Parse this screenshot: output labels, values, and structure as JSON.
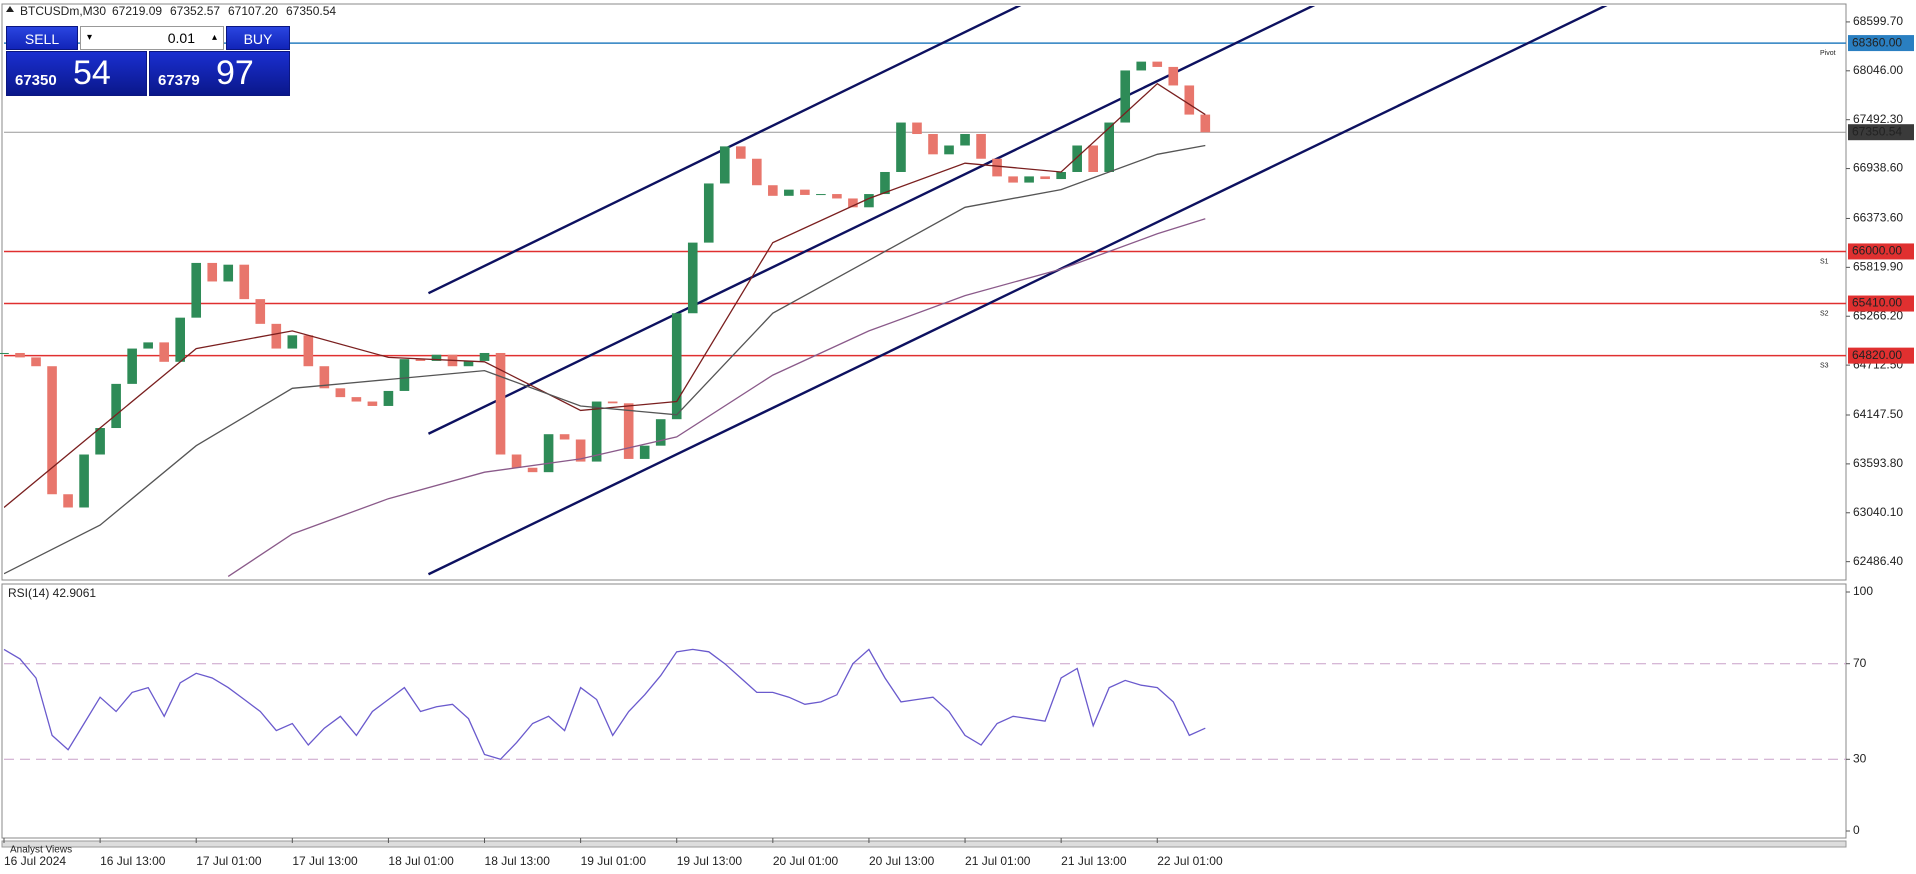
{
  "header": {
    "symbol": "BTCUSDm,M30",
    "ohlc": [
      "67219.09",
      "67352.57",
      "67107.20",
      "67350.54"
    ]
  },
  "trade_panel": {
    "sell": "SELL",
    "lot": "0.01",
    "buy": "BUY",
    "sell_price": [
      "67350",
      "54"
    ],
    "buy_price": [
      "67379",
      "97"
    ]
  },
  "tab": "Analyst Views",
  "chart_data": [
    {
      "type": "candlestick",
      "xlim": [
        0,
        230
      ],
      "xticks": [
        {
          "value": 0,
          "label": "16 Jul 2024"
        },
        {
          "value": 12,
          "label": "16 Jul 13:00"
        },
        {
          "value": 24,
          "label": "17 Jul 01:00"
        },
        {
          "value": 36,
          "label": "17 Jul 13:00"
        },
        {
          "value": 48,
          "label": "18 Jul 01:00"
        },
        {
          "value": 60,
          "label": "18 Jul 13:00"
        },
        {
          "value": 72,
          "label": "19 Jul 01:00"
        },
        {
          "value": 84,
          "label": "19 Jul 13:00"
        },
        {
          "value": 96,
          "label": "20 Jul 01:00"
        },
        {
          "value": 108,
          "label": "20 Jul 13:00"
        },
        {
          "value": 120,
          "label": "21 Jul 01:00"
        },
        {
          "value": 132,
          "label": "21 Jul 13:00"
        },
        {
          "value": 144,
          "label": "22 Jul 01:00"
        }
      ],
      "ylim": [
        62290,
        68780
      ],
      "yticks": [
        {
          "value": 68599.7,
          "label": "68599.70"
        },
        {
          "value": 68046,
          "label": "68046.00"
        },
        {
          "value": 67492.3,
          "label": "67492.30"
        },
        {
          "value": 66938.6,
          "label": "66938.60"
        },
        {
          "value": 66373.6,
          "label": "66373.60"
        },
        {
          "value": 65819.9,
          "label": "65819.90"
        },
        {
          "value": 65266.2,
          "label": "65266.20"
        },
        {
          "value": 64712.5,
          "label": "64712.50"
        },
        {
          "value": 64147.5,
          "label": "64147.50"
        },
        {
          "value": 63593.8,
          "label": "63593.80"
        },
        {
          "value": 63040.1,
          "label": "63040.10"
        },
        {
          "value": 62486.4,
          "label": "62486.40"
        }
      ],
      "series": [
        {
          "type": "candlestick",
          "color": "#2e8b57",
          "down_color": "#e8766c",
          "x": [
            0,
            2,
            4,
            6,
            8,
            10,
            12,
            14,
            16,
            18,
            20,
            22,
            24,
            26,
            28,
            30,
            32,
            34,
            36,
            38,
            40,
            42,
            44,
            46,
            48,
            50,
            52,
            54,
            56,
            58,
            60,
            62,
            64,
            66,
            68,
            70,
            72,
            74,
            76,
            78,
            80,
            82,
            84,
            86,
            88,
            90,
            92,
            94,
            96,
            98,
            100,
            102,
            104,
            106,
            108,
            110,
            112,
            114,
            116,
            118,
            120,
            122,
            124,
            126,
            128,
            130,
            132,
            134,
            136,
            138,
            140,
            142,
            144,
            146,
            148,
            150
          ],
          "values": [
            64850,
            64800,
            64700,
            63250,
            63100,
            63700,
            64000,
            64500,
            64900,
            64970,
            64750,
            65250,
            65870,
            65660,
            65850,
            65460,
            65180,
            64900,
            65050,
            64700,
            64450,
            64350,
            64300,
            64250,
            64420,
            64780,
            64760,
            64830,
            64700,
            64760,
            64850,
            63700,
            63550,
            63500,
            63930,
            63870,
            63620,
            64300,
            64280,
            63650,
            63800,
            64100,
            65300,
            66100,
            66770,
            67190,
            67050,
            66750,
            66630,
            66700,
            66640,
            66650,
            66600,
            66500,
            66650,
            66900,
            67460,
            67330,
            67100,
            67200,
            67330,
            67050,
            66850,
            66780,
            66850,
            66820,
            66900,
            67200,
            66900,
            67460,
            68050,
            68150,
            68090,
            67880,
            67550,
            67350
          ]
        },
        {
          "type": "line",
          "color": "#7a1f1f",
          "x": [
            0,
            12,
            24,
            36,
            48,
            60,
            72,
            84,
            96,
            108,
            120,
            132,
            144,
            150
          ],
          "values": [
            63100,
            64000,
            64900,
            65100,
            64800,
            64750,
            64200,
            64300,
            66100,
            66600,
            67000,
            66900,
            67900,
            67550
          ]
        },
        {
          "type": "line",
          "color": "#555555",
          "x": [
            0,
            12,
            24,
            36,
            48,
            60,
            72,
            84,
            96,
            108,
            120,
            132,
            144,
            150
          ],
          "values": [
            62350,
            62900,
            63800,
            64450,
            64550,
            64650,
            64250,
            64150,
            65300,
            65900,
            66500,
            66700,
            67100,
            67200
          ]
        },
        {
          "type": "line",
          "color": "#8a5a8a",
          "x": [
            28,
            36,
            48,
            60,
            72,
            84,
            96,
            108,
            120,
            132,
            144,
            150
          ],
          "values": [
            62320,
            62800,
            63200,
            63500,
            63650,
            63900,
            64600,
            65100,
            65500,
            65800,
            66200,
            66370
          ]
        }
      ],
      "channels": {
        "color": "#0d1160",
        "lines": [
          {
            "x": [
              53,
              127.3
            ],
            "values": [
              65527,
              68807
            ]
          },
          {
            "x": [
              53,
              164
            ],
            "values": [
              63935,
              68807
            ]
          },
          {
            "x": [
              53,
              200.5
            ],
            "values": [
              62344,
              68807
            ]
          }
        ]
      },
      "levels": [
        {
          "value": 68360,
          "label": "68360.00",
          "tag": "Pivot",
          "color": "#2a7fc1"
        },
        {
          "value": 66000,
          "label": "66000.00",
          "tag": "S1",
          "color": "#e03030"
        },
        {
          "value": 65410,
          "label": "65410.00",
          "tag": "S2",
          "color": "#e03030"
        },
        {
          "value": 64820,
          "label": "64820.00",
          "tag": "S3",
          "color": "#e03030"
        }
      ],
      "last_price": {
        "value": 67350.54,
        "color": "#3a3a3a"
      }
    },
    {
      "type": "line",
      "title": "RSI(14) 42.9061",
      "ylim": [
        0,
        100
      ],
      "yticks": [
        100,
        70,
        30,
        0
      ],
      "levels": [
        70,
        30
      ],
      "series": [
        {
          "color": "#6a5acd",
          "x": [
            0,
            2,
            4,
            6,
            8,
            10,
            12,
            14,
            16,
            18,
            20,
            22,
            24,
            26,
            28,
            30,
            32,
            34,
            36,
            38,
            40,
            42,
            44,
            46,
            48,
            50,
            52,
            54,
            56,
            58,
            60,
            62,
            64,
            66,
            68,
            70,
            72,
            74,
            76,
            78,
            80,
            82,
            84,
            86,
            88,
            90,
            92,
            94,
            96,
            98,
            100,
            102,
            104,
            106,
            108,
            110,
            112,
            114,
            116,
            118,
            120,
            122,
            124,
            126,
            128,
            130,
            132,
            134,
            136,
            138,
            140,
            142,
            144,
            146,
            148,
            150
          ],
          "values": [
            76,
            72,
            64,
            40,
            34,
            45,
            56,
            50,
            58,
            60,
            48,
            62,
            66,
            64,
            60,
            55,
            50,
            42,
            45,
            36,
            43,
            48,
            40,
            50,
            55,
            60,
            50,
            52,
            53,
            47,
            32,
            30,
            37,
            45,
            48,
            42,
            60,
            55,
            40,
            50,
            57,
            65,
            75,
            76,
            75,
            70,
            64,
            58,
            58,
            56,
            53,
            54,
            57,
            70,
            76,
            64,
            54,
            55,
            56,
            50,
            40,
            36,
            45,
            48,
            47,
            46,
            64,
            68,
            44,
            60,
            63,
            61,
            60,
            54,
            40,
            43
          ]
        }
      ]
    }
  ]
}
